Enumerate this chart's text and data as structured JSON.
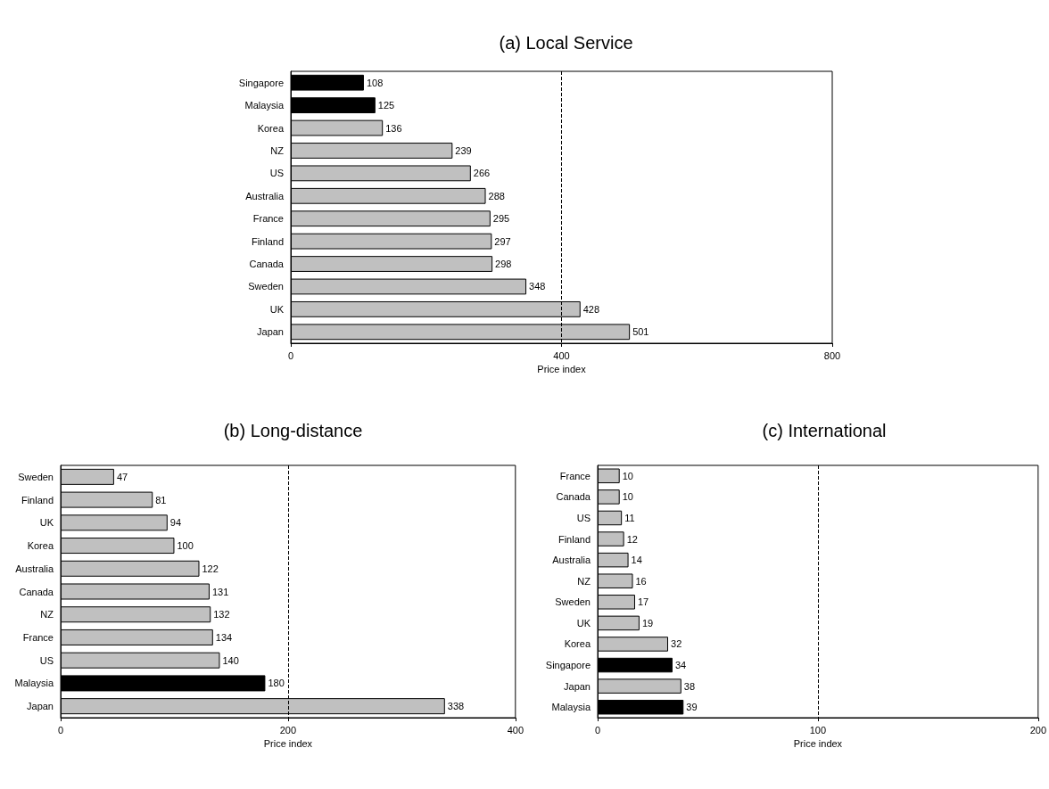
{
  "chart_data": [
    {
      "type": "bar",
      "orientation": "horizontal",
      "title": "(a) Local Service",
      "xlabel": "Price index",
      "categories": [
        "Singapore",
        "Malaysia",
        "Korea",
        "NZ",
        "US",
        "Australia",
        "France",
        "Finland",
        "Canada",
        "Sweden",
        "UK",
        "Japan"
      ],
      "values": [
        108,
        125,
        136,
        239,
        266,
        288,
        295,
        297,
        298,
        348,
        428,
        501
      ],
      "colors": [
        "#000000",
        "#000000",
        "#c0c0c0",
        "#c0c0c0",
        "#c0c0c0",
        "#c0c0c0",
        "#c0c0c0",
        "#c0c0c0",
        "#c0c0c0",
        "#c0c0c0",
        "#c0c0c0",
        "#c0c0c0"
      ],
      "xlim": [
        0,
        800
      ],
      "xticks": [
        0,
        400,
        800
      ],
      "grid": false,
      "data_labels": true,
      "ref_lines": [
        {
          "axis": "x",
          "value": 400,
          "line_style": "dashed",
          "color": "#000000"
        }
      ]
    },
    {
      "type": "bar",
      "orientation": "horizontal",
      "title": "(b) Long-distance",
      "xlabel": "Price index",
      "categories": [
        "Sweden",
        "Finland",
        "UK",
        "Korea",
        "Australia",
        "Canada",
        "NZ",
        "France",
        "US",
        "Malaysia",
        "Japan"
      ],
      "values": [
        47,
        81,
        94,
        100,
        122,
        131,
        132,
        134,
        140,
        180,
        338
      ],
      "colors": [
        "#c0c0c0",
        "#c0c0c0",
        "#c0c0c0",
        "#c0c0c0",
        "#c0c0c0",
        "#c0c0c0",
        "#c0c0c0",
        "#c0c0c0",
        "#c0c0c0",
        "#000000",
        "#c0c0c0"
      ],
      "xlim": [
        0,
        400
      ],
      "xticks": [
        0,
        200,
        400
      ],
      "grid": false,
      "data_labels": true,
      "ref_lines": [
        {
          "axis": "x",
          "value": 200,
          "line_style": "dashed",
          "color": "#000000"
        }
      ]
    },
    {
      "type": "bar",
      "orientation": "horizontal",
      "title": "(c) International",
      "xlabel": "Price index",
      "categories": [
        "France",
        "Canada",
        "US",
        "Finland",
        "Australia",
        "NZ",
        "Sweden",
        "UK",
        "Korea",
        "Singapore",
        "Japan",
        "Malaysia"
      ],
      "values": [
        10,
        10,
        11,
        12,
        14,
        16,
        17,
        19,
        32,
        34,
        38,
        39
      ],
      "colors": [
        "#c0c0c0",
        "#c0c0c0",
        "#c0c0c0",
        "#c0c0c0",
        "#c0c0c0",
        "#c0c0c0",
        "#c0c0c0",
        "#c0c0c0",
        "#c0c0c0",
        "#000000",
        "#c0c0c0",
        "#000000"
      ],
      "xlim": [
        0,
        200
      ],
      "xticks": [
        0,
        100,
        200
      ],
      "grid": false,
      "data_labels": true,
      "ref_lines": [
        {
          "axis": "x",
          "value": 100,
          "line_style": "dashed",
          "color": "#000000"
        }
      ]
    }
  ]
}
